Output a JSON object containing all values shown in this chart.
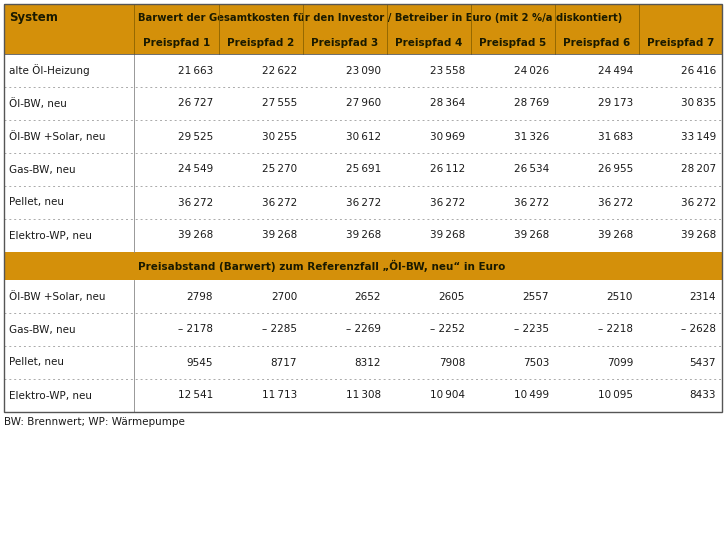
{
  "title_row1": "Barwert der Gesamtkosten für den Investor / Betreiber in Euro (mit 2 %/a diskontiert)",
  "section1_rows": [
    [
      "alte Öl-Heizung",
      "21 663",
      "22 622",
      "23 090",
      "23 558",
      "24 026",
      "24 494",
      "26 416"
    ],
    [
      "Öl-BW, neu",
      "26 727",
      "27 555",
      "27 960",
      "28 364",
      "28 769",
      "29 173",
      "30 835"
    ],
    [
      "Öl-BW +Solar, neu",
      "29 525",
      "30 255",
      "30 612",
      "30 969",
      "31 326",
      "31 683",
      "33 149"
    ],
    [
      "Gas-BW, neu",
      "24 549",
      "25 270",
      "25 691",
      "26 112",
      "26 534",
      "26 955",
      "28 207"
    ],
    [
      "Pellet, neu",
      "36 272",
      "36 272",
      "36 272",
      "36 272",
      "36 272",
      "36 272",
      "36 272"
    ],
    [
      "Elektro-WP, neu",
      "39 268",
      "39 268",
      "39 268",
      "39 268",
      "39 268",
      "39 268",
      "39 268"
    ]
  ],
  "section2_header": "Preisabstand (Barwert) zum Referenzfall „Öl-BW, neu“ in Euro",
  "section2_rows": [
    [
      "Öl-BW +Solar, neu",
      "2798",
      "2700",
      "2652",
      "2605",
      "2557",
      "2510",
      "2314"
    ],
    [
      "Gas-BW, neu",
      "– 2178",
      "– 2285",
      "– 2269",
      "– 2252",
      "– 2235",
      "– 2218",
      "– 2628"
    ],
    [
      "Pellet, neu",
      "9545",
      "8717",
      "8312",
      "7908",
      "7503",
      "7099",
      "5437"
    ],
    [
      "Elektro-WP, neu",
      "12 541",
      "11 713",
      "11 308",
      "10 904",
      "10 499",
      "10 095",
      "8433"
    ]
  ],
  "footnote": "BW: Brennwert; WP: Wärmepumpe",
  "header_bg": "#D4900A",
  "header_text": "#1A1A00",
  "data_text": "#1A1A1A",
  "preispfad_labels": [
    "Preispfad 1",
    "Preispfad 2",
    "Preispfad 3",
    "Preispfad 4",
    "Preispfad 5",
    "Preispfad 6",
    "Preispfad 7"
  ]
}
